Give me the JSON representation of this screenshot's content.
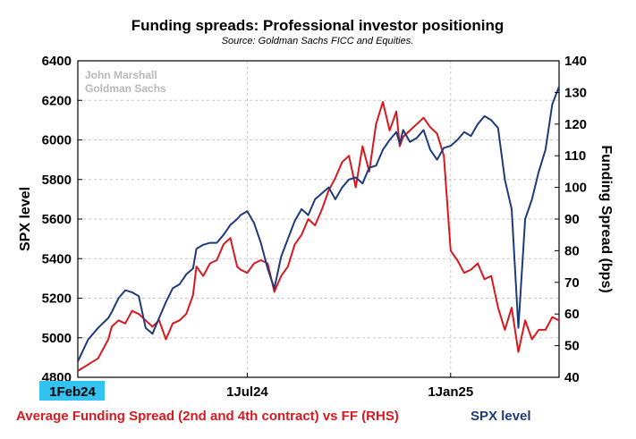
{
  "chart_data": {
    "type": "line",
    "title": "Funding spreads: Professional investor positioning",
    "subtitle": "Source: Goldman Sachs FICC and Equities.",
    "watermark": [
      "John Marshall",
      "Goldman Sachs"
    ],
    "ylabel": "SPX level",
    "y2label": "Funding Spread (bps)",
    "ylim": [
      4800,
      6400
    ],
    "y2lim": [
      40,
      140
    ],
    "yticks": [
      "4800",
      "5000",
      "5200",
      "5400",
      "5600",
      "5800",
      "6000",
      "6200",
      "6400"
    ],
    "y2ticks": [
      "40",
      "50",
      "60",
      "70",
      "80",
      "90",
      "100",
      "110",
      "120",
      "130",
      "140"
    ],
    "xlim_months": [
      0,
      14.2
    ],
    "xticks": [
      {
        "label": "1Feb24",
        "t": 0,
        "highlight": true
      },
      {
        "label": "1Jul24",
        "t": 5
      },
      {
        "label": "1Jan25",
        "t": 11
      }
    ],
    "grid": true,
    "series": [
      {
        "name": "Average Funding Spread (2nd and 4th contract) vs FF (RHS)",
        "axis": "right",
        "color": "#d7191f",
        "x": [
          0,
          0.3,
          0.6,
          0.9,
          1.0,
          1.2,
          1.4,
          1.6,
          1.8,
          2.0,
          2.2,
          2.4,
          2.6,
          2.8,
          3.0,
          3.2,
          3.4,
          3.5,
          3.7,
          3.9,
          4.1,
          4.3,
          4.5,
          4.7,
          4.8,
          5.0,
          5.2,
          5.4,
          5.6,
          5.8,
          6.0,
          6.2,
          6.4,
          6.6,
          6.8,
          7.0,
          7.2,
          7.4,
          7.6,
          7.8,
          8.0,
          8.2,
          8.4,
          8.6,
          8.8,
          9.0,
          9.2,
          9.4,
          9.5,
          9.6,
          9.8,
          10.0,
          10.2,
          10.4,
          10.6,
          10.8,
          11.0,
          11.2,
          11.4,
          11.6,
          11.8,
          12.0,
          12.2,
          12.4,
          12.6,
          12.8,
          13.0,
          13.2,
          13.4,
          13.6,
          13.8,
          14.0,
          14.2
        ],
        "values": [
          42,
          44,
          46,
          52,
          56,
          58,
          57,
          61,
          60,
          58,
          56,
          58,
          52,
          57,
          58,
          60,
          66,
          75,
          72,
          76,
          77,
          82,
          84,
          75,
          74,
          73,
          76,
          77,
          76,
          67,
          72,
          75,
          82,
          85,
          90,
          88,
          93,
          99,
          103,
          108,
          110,
          100,
          113,
          105,
          120,
          127,
          118,
          124,
          113,
          116,
          118,
          120,
          122,
          119,
          117,
          110,
          80,
          77,
          73,
          74,
          76,
          71,
          72,
          62,
          55,
          62,
          48,
          58,
          52,
          55,
          55,
          59,
          58
        ]
      },
      {
        "name": "SPX level",
        "axis": "left",
        "color": "#1f3a7a",
        "x": [
          0,
          0.3,
          0.6,
          0.9,
          1.0,
          1.2,
          1.4,
          1.6,
          1.8,
          2.0,
          2.2,
          2.4,
          2.6,
          2.8,
          3.0,
          3.2,
          3.4,
          3.5,
          3.7,
          3.9,
          4.1,
          4.3,
          4.5,
          4.7,
          4.8,
          5.0,
          5.2,
          5.4,
          5.6,
          5.8,
          6.0,
          6.2,
          6.4,
          6.6,
          6.8,
          7.0,
          7.2,
          7.4,
          7.6,
          7.8,
          8.0,
          8.2,
          8.4,
          8.6,
          8.8,
          9.0,
          9.2,
          9.4,
          9.5,
          9.6,
          9.8,
          10.0,
          10.2,
          10.4,
          10.6,
          10.8,
          11.0,
          11.2,
          11.4,
          11.6,
          11.8,
          12.0,
          12.2,
          12.4,
          12.6,
          12.8,
          13.0,
          13.2,
          13.4,
          13.6,
          13.8,
          14.0,
          14.2
        ],
        "values": [
          4880,
          4990,
          5050,
          5100,
          5130,
          5200,
          5240,
          5230,
          5210,
          5050,
          5020,
          5100,
          5180,
          5250,
          5270,
          5320,
          5350,
          5450,
          5470,
          5480,
          5480,
          5520,
          5570,
          5600,
          5620,
          5640,
          5580,
          5480,
          5350,
          5250,
          5410,
          5500,
          5590,
          5650,
          5620,
          5700,
          5730,
          5760,
          5700,
          5760,
          5800,
          5810,
          5780,
          5860,
          5870,
          5950,
          6000,
          6040,
          5980,
          6050,
          5990,
          6010,
          6050,
          5950,
          5900,
          5960,
          5970,
          6000,
          6040,
          6020,
          6080,
          6120,
          6100,
          6060,
          5800,
          5650,
          5050,
          5600,
          5700,
          5840,
          5950,
          6180,
          6270
        ]
      }
    ]
  }
}
